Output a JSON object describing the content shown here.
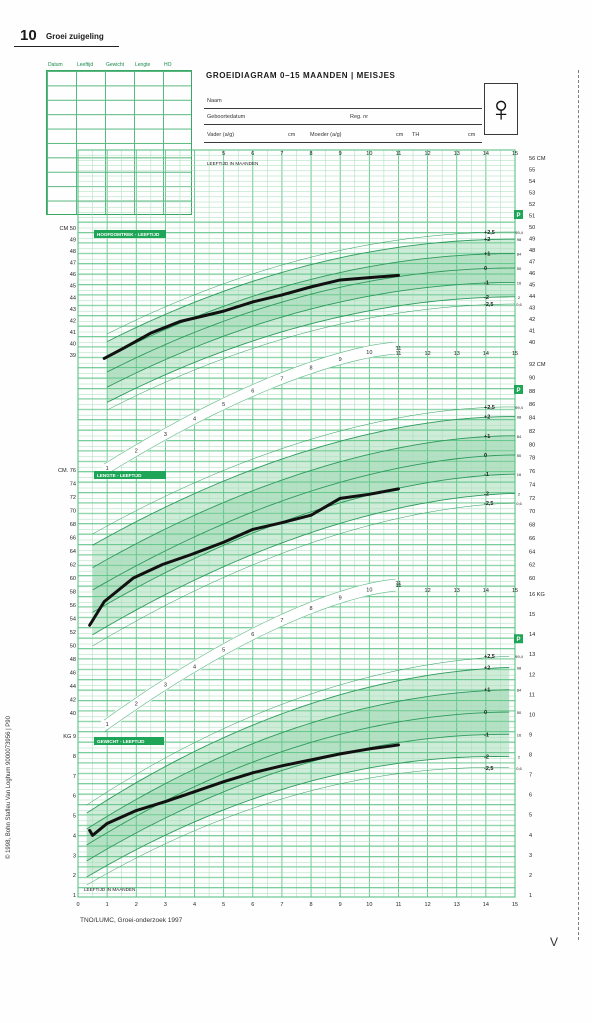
{
  "page": {
    "number": "10",
    "section_title": "Groei zuigeling",
    "roman": "V",
    "source": "TNO/LUMC, Groei-onderzoek 1997",
    "copyright": "© 1998, Bohn Stafleu Van Loghum 9000073956 | P90"
  },
  "notes_table": {
    "headers": [
      "Datum",
      "Leeftijd",
      "Gewicht",
      "Lengte",
      "HO"
    ],
    "rows": 10
  },
  "form": {
    "title": "GROEIDIAGRAM 0–15 MAANDEN | MEISJES",
    "name_label": "Naam",
    "birthdate_label": "Geboortedatum",
    "reg_label": "Reg. nr",
    "father_label": "Vader (a/g)",
    "mother_label": "Moeder (a/g)",
    "cm_unit": "cm",
    "th_label": "TH",
    "gender_symbol": "♀",
    "gender_icon": "female-symbol-icon"
  },
  "colors": {
    "grid": "#4fbf7d",
    "grid_minor": "#a9dcbc",
    "band": "#c6e9d1",
    "band_dark": "#9fd9b3",
    "label_bg": "#1fa557",
    "curve": "#111111"
  },
  "chart_data": [
    {
      "type": "line",
      "title": "HOOFDOMTREK - LEEFTIJD",
      "xlabel": "LEEFTIJD IN MAANDEN",
      "ylabel": "CM",
      "x_ticks": [
        "5",
        "6",
        "7",
        "8",
        "9",
        "10",
        "11",
        "12",
        "13",
        "14",
        "15"
      ],
      "xlim": [
        0,
        15
      ],
      "ylim": [
        39,
        50
      ],
      "right_ylim": [
        40,
        56
      ],
      "sd_labels": [
        "+2,5",
        "+2",
        "+1",
        "0",
        "-1",
        "-2",
        "-2,5"
      ],
      "percentiles": [
        "99,4",
        "98",
        "84",
        "50",
        "16",
        "2",
        "0,6"
      ],
      "P_label": "P",
      "series": [
        {
          "name": "",
          "x": [
            0.9,
            1.5,
            2.5,
            3.5,
            5,
            6,
            7,
            8,
            9,
            10,
            11
          ],
          "y": [
            38.7,
            39.5,
            40.9,
            41.9,
            42.8,
            43.6,
            44.2,
            44.9,
            45.5,
            45.7,
            45.9
          ]
        }
      ]
    },
    {
      "type": "line",
      "title": "LENGTE - LEEFTIJD",
      "xlabel": "LEEFTIJD IN MAANDEN",
      "ylabel": "CM",
      "x_ticks": [
        "11",
        "12",
        "13",
        "14",
        "15"
      ],
      "xlim": [
        0,
        15
      ],
      "ylim": [
        40,
        76
      ],
      "right_ylim": [
        60,
        92
      ],
      "sd_labels": [
        "+2,5",
        "+2",
        "+1",
        "0",
        "-1",
        "-2",
        "-2,5"
      ],
      "percentiles": [
        "99,4",
        "98",
        "84",
        "50",
        "16",
        "2",
        "0,6"
      ],
      "P_label": "P",
      "series": [
        {
          "name": "",
          "x": [
            0.4,
            0.9,
            1.9,
            2.9,
            3.9,
            5,
            6,
            7,
            8,
            9,
            10,
            11
          ],
          "y": [
            53,
            56.5,
            60,
            62,
            63.5,
            65.3,
            67.2,
            68.2,
            69.3,
            71.8,
            72.4,
            73.2
          ]
        }
      ]
    },
    {
      "type": "line",
      "title": "GEWICHT - LEEFTIJD",
      "xlabel": "LEEFTIJD IN MAANDEN",
      "ylabel": "KG",
      "x_ticks": [
        "0",
        "1",
        "2",
        "3",
        "4",
        "5",
        "6",
        "7",
        "8",
        "9",
        "10",
        "11",
        "12",
        "13",
        "14",
        "15"
      ],
      "xlim": [
        0,
        15
      ],
      "ylim": [
        1,
        9
      ],
      "right_ylim": [
        1,
        16
      ],
      "sd_labels": [
        "+2,5",
        "+2",
        "+1",
        "0",
        "-1",
        "-2",
        "-2,5"
      ],
      "percentiles": [
        "99,4",
        "98",
        "84",
        "50",
        "16",
        "2",
        "0,6"
      ],
      "P_label": "P",
      "series": [
        {
          "name": "",
          "x": [
            0.4,
            0.5,
            0.75,
            1,
            2,
            3,
            4,
            5,
            6,
            7,
            8,
            9,
            10,
            11
          ],
          "y": [
            4.25,
            4.0,
            4.3,
            4.6,
            5.25,
            5.7,
            6.2,
            6.7,
            7.15,
            7.5,
            7.8,
            8.1,
            8.35,
            8.55
          ]
        }
      ]
    }
  ]
}
